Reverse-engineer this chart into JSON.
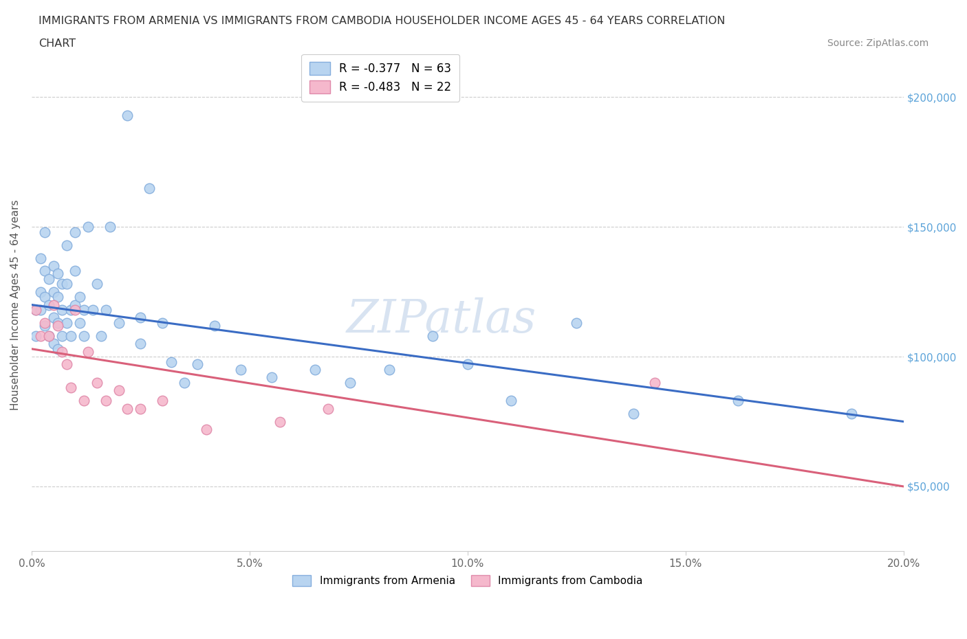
{
  "title_line1": "IMMIGRANTS FROM ARMENIA VS IMMIGRANTS FROM CAMBODIA HOUSEHOLDER INCOME AGES 45 - 64 YEARS CORRELATION",
  "title_line2": "CHART",
  "source": "Source: ZipAtlas.com",
  "ylabel": "Householder Income Ages 45 - 64 years",
  "xlim": [
    0.0,
    0.2
  ],
  "ylim": [
    25000,
    215000
  ],
  "yticks": [
    50000,
    100000,
    150000,
    200000
  ],
  "ytick_labels": [
    "$50,000",
    "$100,000",
    "$150,000",
    "$200,000"
  ],
  "xticks": [
    0.0,
    0.05,
    0.1,
    0.15,
    0.2
  ],
  "xtick_labels": [
    "0.0%",
    "5.0%",
    "10.0%",
    "15.0%",
    "20.0%"
  ],
  "armenia_color": "#b8d4f0",
  "armenia_edge": "#85aedd",
  "cambodia_color": "#f5b8cc",
  "cambodia_edge": "#e08aaa",
  "armenia_R": -0.377,
  "armenia_N": 63,
  "cambodia_R": -0.483,
  "cambodia_N": 22,
  "armenia_line_color": "#3a6cc4",
  "cambodia_line_color": "#d9607a",
  "watermark": "ZIPatlas",
  "armenia_x": [
    0.001,
    0.001,
    0.002,
    0.002,
    0.002,
    0.003,
    0.003,
    0.003,
    0.003,
    0.004,
    0.004,
    0.004,
    0.005,
    0.005,
    0.005,
    0.005,
    0.006,
    0.006,
    0.006,
    0.006,
    0.007,
    0.007,
    0.007,
    0.008,
    0.008,
    0.008,
    0.009,
    0.009,
    0.01,
    0.01,
    0.01,
    0.011,
    0.011,
    0.012,
    0.012,
    0.013,
    0.014,
    0.015,
    0.016,
    0.017,
    0.018,
    0.02,
    0.022,
    0.025,
    0.025,
    0.027,
    0.03,
    0.032,
    0.035,
    0.038,
    0.042,
    0.048,
    0.055,
    0.065,
    0.073,
    0.082,
    0.092,
    0.1,
    0.11,
    0.125,
    0.138,
    0.162,
    0.188
  ],
  "armenia_y": [
    118000,
    108000,
    125000,
    138000,
    118000,
    148000,
    133000,
    123000,
    112000,
    130000,
    120000,
    108000,
    135000,
    125000,
    115000,
    105000,
    132000,
    123000,
    113000,
    103000,
    128000,
    118000,
    108000,
    143000,
    128000,
    113000,
    118000,
    108000,
    148000,
    133000,
    120000,
    123000,
    113000,
    118000,
    108000,
    150000,
    118000,
    128000,
    108000,
    118000,
    150000,
    113000,
    193000,
    115000,
    105000,
    165000,
    113000,
    98000,
    90000,
    97000,
    112000,
    95000,
    92000,
    95000,
    90000,
    95000,
    108000,
    97000,
    83000,
    113000,
    78000,
    83000,
    78000
  ],
  "cambodia_x": [
    0.001,
    0.002,
    0.003,
    0.004,
    0.005,
    0.006,
    0.007,
    0.008,
    0.009,
    0.01,
    0.012,
    0.013,
    0.015,
    0.017,
    0.02,
    0.022,
    0.025,
    0.03,
    0.04,
    0.057,
    0.068,
    0.143
  ],
  "cambodia_y": [
    118000,
    108000,
    113000,
    108000,
    120000,
    112000,
    102000,
    97000,
    88000,
    118000,
    83000,
    102000,
    90000,
    83000,
    87000,
    80000,
    80000,
    83000,
    72000,
    75000,
    80000,
    90000
  ]
}
